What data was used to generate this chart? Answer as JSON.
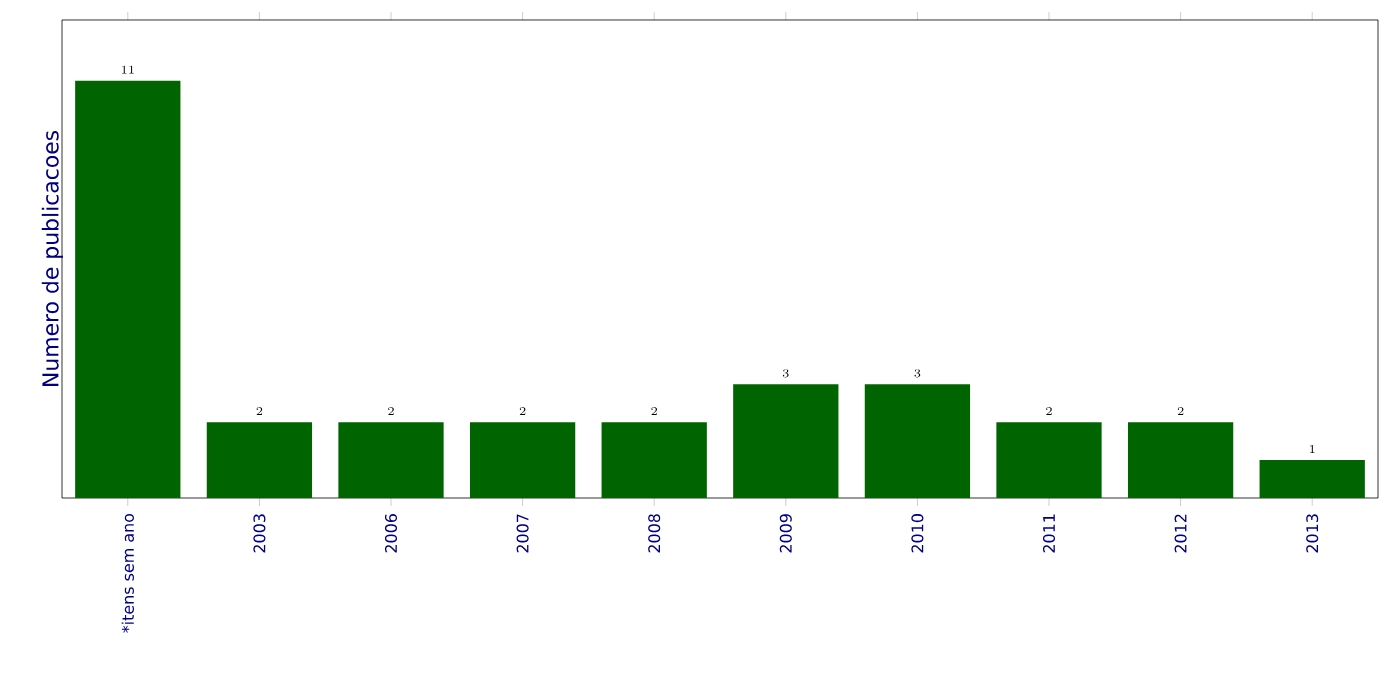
{
  "chart_data": {
    "type": "bar",
    "ylabel": "Numero de publicacoes",
    "categories": [
      "*itens sem ano",
      "2003",
      "2006",
      "2007",
      "2008",
      "2009",
      "2010",
      "2011",
      "2012",
      "2013"
    ],
    "values": [
      11,
      2,
      2,
      2,
      2,
      3,
      3,
      2,
      2,
      1
    ],
    "color": "#006400",
    "ylim": [
      0,
      12.6
    ],
    "data_labels": true,
    "tick_labels": "x"
  }
}
